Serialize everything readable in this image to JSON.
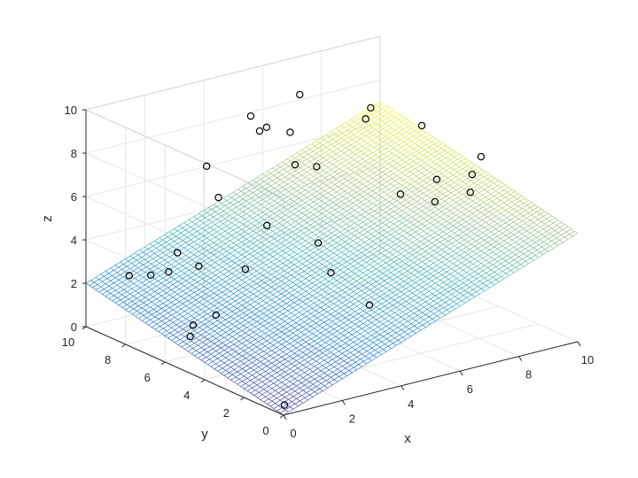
{
  "chart_data": {
    "type": "surface",
    "xlabel": "x",
    "ylabel": "y",
    "zlabel": "z",
    "xlim": [
      0,
      10
    ],
    "ylim": [
      0,
      10
    ],
    "zlim": [
      0,
      10
    ],
    "x_ticks": [
      "0",
      "2",
      "4",
      "6",
      "8",
      "10"
    ],
    "y_ticks": [
      "0",
      "2",
      "4",
      "6",
      "8",
      "10"
    ],
    "z_ticks": [
      "0",
      "2",
      "4",
      "6",
      "8",
      "10"
    ],
    "grid": true,
    "colormap": "parula",
    "surface": {
      "equation": "z = 0.5*x + 0.2*y",
      "corners": [
        {
          "x": 0,
          "y": 0,
          "z": 0
        },
        {
          "x": 10,
          "y": 0,
          "z": 5
        },
        {
          "x": 0,
          "y": 10,
          "z": 2
        },
        {
          "x": 10,
          "y": 10,
          "z": 7
        }
      ],
      "mesh_lines": 60
    },
    "points": [
      {
        "x": 0.3,
        "y": 0.4,
        "z": 0.2
      },
      {
        "x": 1.4,
        "y": 5.5,
        "z": 1.9
      },
      {
        "x": 4.6,
        "y": 2.5,
        "z": 2.5
      },
      {
        "x": 3.0,
        "y": 6.4,
        "z": 3.1
      },
      {
        "x": 4.6,
        "y": 5.1,
        "z": 4.3
      },
      {
        "x": 3.8,
        "y": 6.5,
        "z": 4.8
      },
      {
        "x": 1.2,
        "y": 7.6,
        "z": 3.1
      },
      {
        "x": 1.9,
        "y": 8.2,
        "z": 3.5
      },
      {
        "x": 1.6,
        "y": 9.1,
        "z": 2.2
      },
      {
        "x": 5.9,
        "y": 8.2,
        "z": 6.2
      },
      {
        "x": 7.4,
        "y": 5.1,
        "z": 5.6
      },
      {
        "x": 8.1,
        "y": 4.4,
        "z": 5.3
      },
      {
        "x": 8.7,
        "y": 5.2,
        "z": 5.8
      },
      {
        "x": 8.7,
        "y": 3.5,
        "z": 5.9
      },
      {
        "x": 9.5,
        "y": 4.6,
        "z": 6.0
      },
      {
        "x": 9.4,
        "y": 4.0,
        "z": 7.1
      },
      {
        "x": 3.9,
        "y": 9.7,
        "z": 6.2
      },
      {
        "x": 3.9,
        "y": 9.1,
        "z": 5.0
      },
      {
        "x": 5.5,
        "y": 9.4,
        "z": 7.4
      },
      {
        "x": 6.0,
        "y": 8.6,
        "z": 7.5
      },
      {
        "x": 8.0,
        "y": 7.5,
        "z": 8.4
      },
      {
        "x": 8.3,
        "y": 8.2,
        "z": 7.5
      },
      {
        "x": 9.2,
        "y": 6.7,
        "z": 7.5
      },
      {
        "x": 5.4,
        "y": 9.7,
        "z": 8.0
      },
      {
        "x": 5.2,
        "y": 8.6,
        "z": 8.0
      },
      {
        "x": 7.2,
        "y": 9.9,
        "z": 8.3
      },
      {
        "x": 6.7,
        "y": 8.3,
        "z": 5.8
      },
      {
        "x": 2.1,
        "y": 7.7,
        "z": 0.3
      },
      {
        "x": 1.8,
        "y": 7.4,
        "z": 0.0
      },
      {
        "x": 4.7,
        "y": 4.6,
        "z": 3.1
      },
      {
        "x": 3.3,
        "y": 9.2,
        "z": 2.0
      },
      {
        "x": 1.0,
        "y": 9.3,
        "z": 2.3
      }
    ]
  }
}
